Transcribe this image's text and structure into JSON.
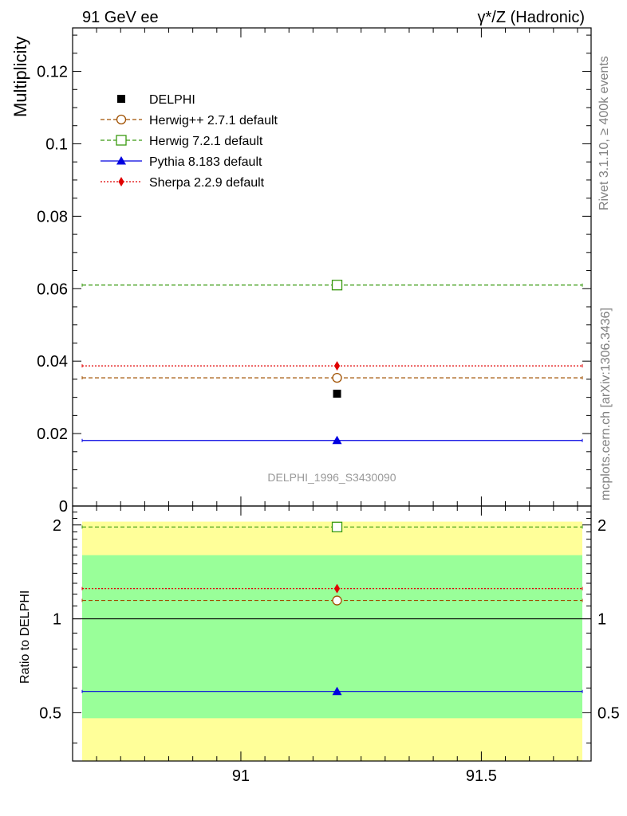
{
  "header": {
    "left": "91 GeV ee",
    "right": "γ*/Z (Hadronic)"
  },
  "side_labels": {
    "rivet": "Rivet 3.1.10, ≥ 400k events",
    "mcplots": "mcplots.cern.ch [arXiv:1306.3436]"
  },
  "chart_data": [
    {
      "type": "scatter",
      "ylabel": "Multiplicity",
      "analysis_label": "DELPHI_1996_S3430090",
      "xlim": [
        90.67,
        91.71
      ],
      "ylim": [
        0,
        0.132
      ],
      "y_ticks": [
        "0",
        "0.02",
        "0.04",
        "0.06",
        "0.08",
        "0.1",
        "0.12"
      ],
      "legend_position": "top-left",
      "data": {
        "name": "DELPHI",
        "x": 91.2,
        "y": 0.031,
        "color": "#000000",
        "marker": "square-filled"
      },
      "series": [
        {
          "name": "Herwig++ 2.7.1 default",
          "x": 91.2,
          "y": 0.0354,
          "color": "#a05000",
          "dash": "dashed",
          "marker": "circle-open"
        },
        {
          "name": "Herwig 7.2.1 default",
          "x": 91.2,
          "y": 0.061,
          "color": "#3a9a10",
          "dash": "dashed",
          "marker": "square-open"
        },
        {
          "name": "Pythia 8.183 default",
          "x": 91.2,
          "y": 0.0181,
          "color": "#0000e0",
          "dash": "solid",
          "marker": "triangle-filled"
        },
        {
          "name": "Sherpa 2.2.9 default",
          "x": 91.2,
          "y": 0.0387,
          "color": "#e00000",
          "dash": "dotted",
          "marker": "diamond-filled"
        }
      ]
    },
    {
      "type": "scatter",
      "ylabel": "Ratio to DELPHI",
      "xlim": [
        90.67,
        91.71
      ],
      "ylim": [
        0.35,
        2.3
      ],
      "x_ticks": [
        "91",
        "91.5"
      ],
      "y_ticks": [
        "0.5",
        "1",
        "2"
      ],
      "bands": [
        {
          "low": 0.35,
          "high": 2.05,
          "color": "#ffff99"
        },
        {
          "low": 0.48,
          "high": 1.6,
          "color": "#99ff99"
        }
      ],
      "reference": 1.0,
      "series": [
        {
          "name": "Herwig++ 2.7.1 default",
          "x": 91.2,
          "y": 1.145,
          "color": "#a05000",
          "dash": "dashed",
          "marker": "circle-open"
        },
        {
          "name": "Herwig 7.2.1 default",
          "x": 91.2,
          "y": 1.97,
          "color": "#3a9a10",
          "dash": "dashed",
          "marker": "square-open"
        },
        {
          "name": "Pythia 8.183 default",
          "x": 91.2,
          "y": 0.585,
          "color": "#0000e0",
          "dash": "solid",
          "marker": "triangle-filled"
        },
        {
          "name": "Sherpa 2.2.9 default",
          "x": 91.2,
          "y": 1.25,
          "color": "#e00000",
          "dash": "dotted",
          "marker": "diamond-filled"
        }
      ]
    }
  ]
}
